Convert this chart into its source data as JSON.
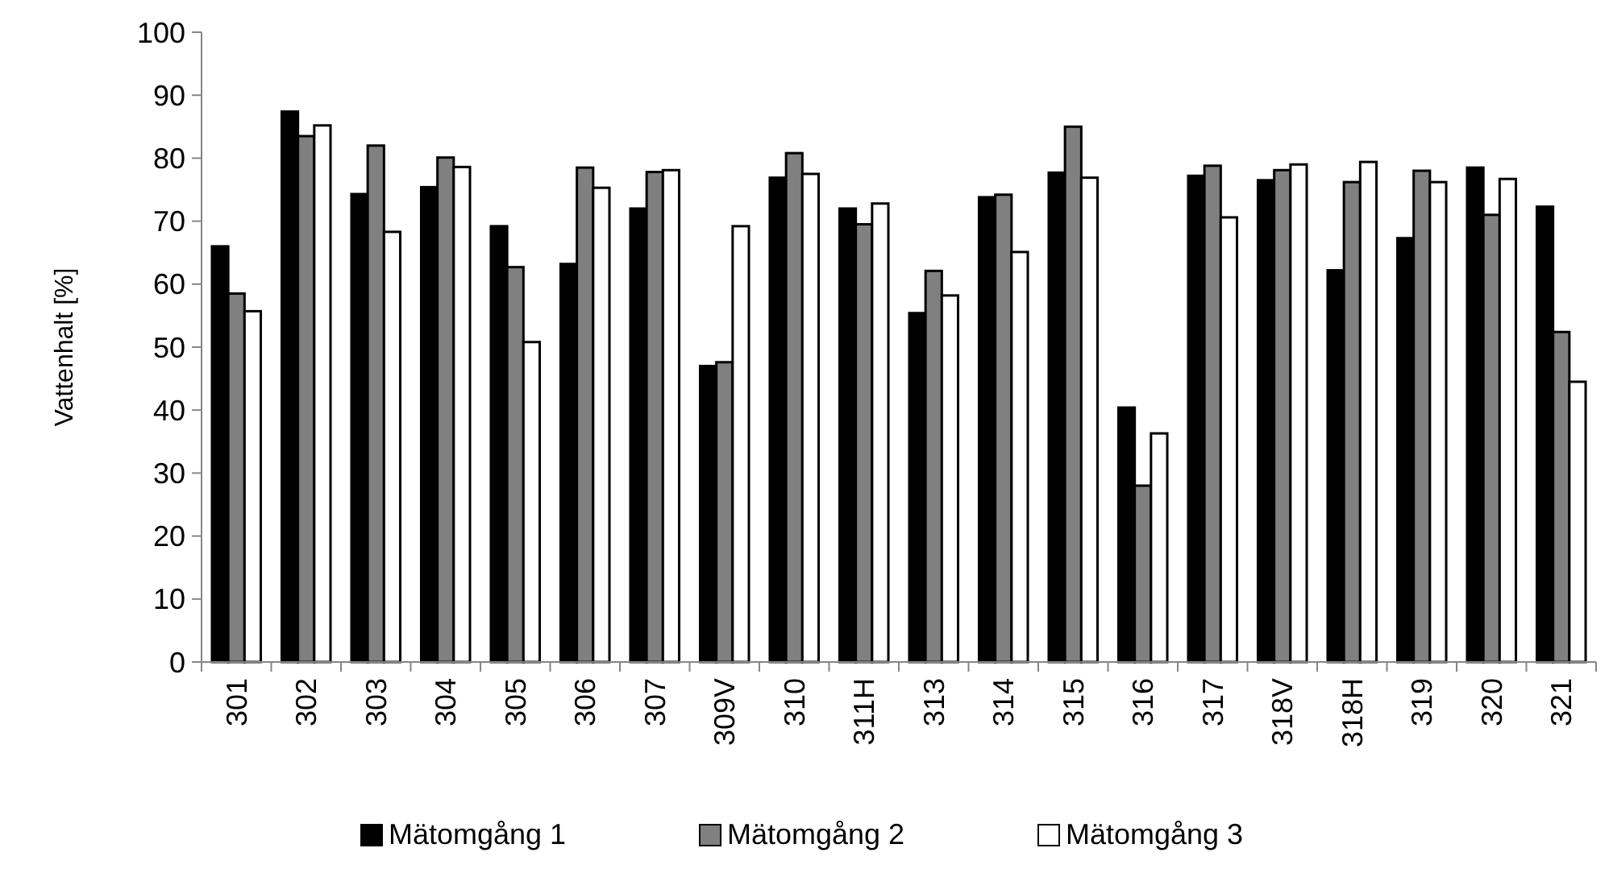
{
  "chart_data": {
    "type": "bar",
    "ylabel": "Vattenhalt [%]",
    "categories": [
      "301",
      "302",
      "303",
      "304",
      "305",
      "306",
      "307",
      "309V",
      "310",
      "311H",
      "313",
      "314",
      "315",
      "316",
      "317",
      "318V",
      "318H",
      "319",
      "320",
      "321"
    ],
    "series": [
      {
        "name": "Mätomgång 1",
        "color": "#000000",
        "values": [
          66,
          87.4,
          74.3,
          75.4,
          69.2,
          63.2,
          72,
          47,
          76.9,
          72,
          55.4,
          73.8,
          77.7,
          40.4,
          77.2,
          76.5,
          62.2,
          67.3,
          78.5,
          72.3
        ]
      },
      {
        "name": "Mätomgång 2",
        "color": "#808080",
        "values": [
          58.5,
          83.5,
          82,
          80.1,
          62.7,
          78.5,
          77.8,
          47.6,
          80.8,
          69.5,
          62.1,
          74.2,
          85,
          28,
          78.8,
          78.1,
          76.2,
          78,
          71,
          52.4
        ]
      },
      {
        "name": "Mätomgång 3",
        "color": "#ffffff",
        "values": [
          55.7,
          85.2,
          68.3,
          78.6,
          50.8,
          75.3,
          78.1,
          69.2,
          77.5,
          72.8,
          58.2,
          65.1,
          76.9,
          36.3,
          70.6,
          79,
          79.4,
          76.2,
          76.7,
          44.5
        ]
      }
    ],
    "ylim": [
      0,
      100
    ],
    "yticks": [
      0,
      10,
      20,
      30,
      40,
      50,
      60,
      70,
      80,
      90,
      100
    ],
    "grid": false,
    "legend": "bottom"
  }
}
